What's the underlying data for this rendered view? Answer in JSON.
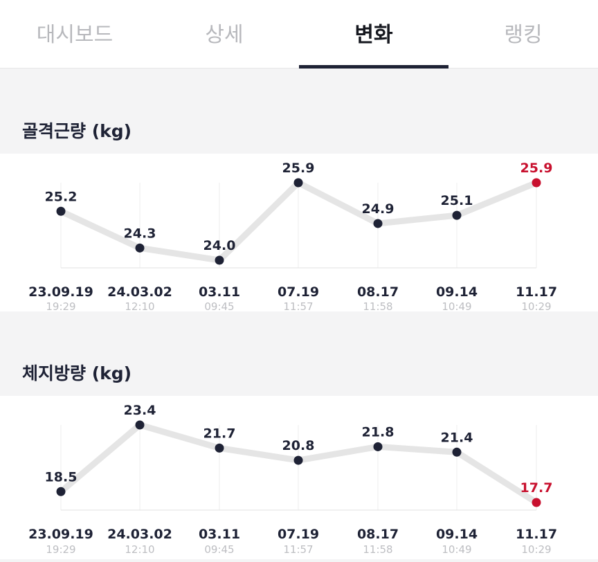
{
  "tabs": [
    {
      "label": "대시보드",
      "active": false
    },
    {
      "label": "상세",
      "active": false
    },
    {
      "label": "변화",
      "active": true
    },
    {
      "label": "랭킹",
      "active": false
    }
  ],
  "colors": {
    "accent": "#1e2235",
    "latest": "#c8102e",
    "line": "#e5e5e5",
    "muted": "#b7b8bc"
  },
  "chart_data": [
    {
      "type": "line",
      "title": "골격근량 (kg)",
      "x": [
        "23.09.19",
        "24.03.02",
        "03.11",
        "07.19",
        "08.17",
        "09.14",
        "11.17"
      ],
      "x_times": [
        "19:29",
        "12:10",
        "09:45",
        "11:57",
        "11:58",
        "10:49",
        "10:29"
      ],
      "values": [
        25.2,
        24.3,
        24.0,
        25.9,
        24.9,
        25.1,
        25.9
      ],
      "value_labels": [
        "25.2",
        "24.3",
        "24.0",
        "25.9",
        "24.9",
        "25.1",
        "25.9"
      ],
      "highlight_last": true,
      "grid": "vertical"
    },
    {
      "type": "line",
      "title": "체지방량 (kg)",
      "x": [
        "23.09.19",
        "24.03.02",
        "03.11",
        "07.19",
        "08.17",
        "09.14",
        "11.17"
      ],
      "x_times": [
        "19:29",
        "12:10",
        "09:45",
        "11:57",
        "11:58",
        "10:49",
        "10:29"
      ],
      "values": [
        18.5,
        23.4,
        21.7,
        20.8,
        21.8,
        21.4,
        17.7
      ],
      "value_labels": [
        "18.5",
        "23.4",
        "21.7",
        "20.8",
        "21.8",
        "21.4",
        "17.7"
      ],
      "highlight_last": true,
      "grid": "vertical"
    }
  ]
}
